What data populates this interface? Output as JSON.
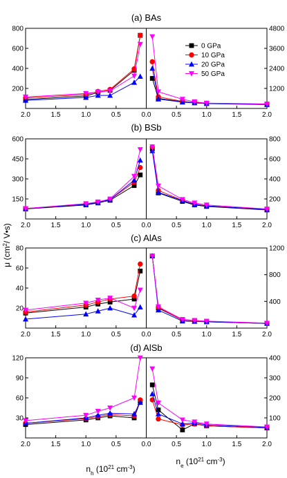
{
  "ylabel": "μ (cm²/ V•s)",
  "xlabel_left": "n_h (10^21 cm^-3)",
  "xlabel_right": "n_e (10^21 cm^-3)",
  "legend": {
    "placement": "top-right of panel (a)",
    "entries": [
      {
        "label": "0 GPa",
        "color": "#000000",
        "marker": "square"
      },
      {
        "label": "10 GPa",
        "color": "#ff0000",
        "marker": "circle"
      },
      {
        "label": "20 GPa",
        "color": "#0000ff",
        "marker": "triangle-up"
      },
      {
        "label": "50 GPa",
        "color": "#ff00ff",
        "marker": "triangle-down"
      }
    ]
  },
  "chart_data": [
    {
      "type": "line",
      "title": "(a) BAs",
      "x_left": [
        2.0,
        1.0,
        0.8,
        0.6,
        0.2,
        0.1
      ],
      "x_right": [
        0.1,
        0.2,
        0.6,
        0.8,
        1.0,
        2.0
      ],
      "xlim_left": [
        2.0,
        0.0
      ],
      "xlim_right": [
        0.0,
        2.0
      ],
      "xticks": [
        "2.0",
        "1.5",
        "1.0",
        "0.5",
        "0.0"
      ],
      "xticks_right": [
        "0.5",
        "1.0",
        "1.5",
        "2.0"
      ],
      "ylim_left": [
        0,
        800
      ],
      "yticks_left": [
        "200",
        "400",
        "600",
        "800"
      ],
      "ylim_right": [
        0,
        4800
      ],
      "yticks_right": [
        "1200",
        "2400",
        "3600",
        "4800"
      ],
      "series": [
        {
          "name": "0 GPa",
          "left": [
            90,
            125,
            160,
            180,
            380,
            730
          ],
          "right": [
            1800,
            600,
            400,
            350,
            300,
            250
          ]
        },
        {
          "name": "10 GPa",
          "left": [
            105,
            140,
            170,
            190,
            395,
            730
          ],
          "right": [
            2800,
            700,
            420,
            360,
            310,
            260
          ]
        },
        {
          "name": "20 GPa",
          "left": [
            80,
            110,
            130,
            130,
            260,
            320
          ],
          "right": [
            2400,
            560,
            380,
            330,
            290,
            230
          ]
        },
        {
          "name": "50 GPa",
          "left": [
            115,
            150,
            165,
            175,
            325,
            640
          ],
          "right": [
            4300,
            1000,
            550,
            400,
            320,
            270
          ]
        }
      ]
    },
    {
      "type": "line",
      "title": "(b) BSb",
      "x_left": [
        2.0,
        1.0,
        0.8,
        0.6,
        0.2,
        0.1
      ],
      "x_right": [
        0.1,
        0.2,
        0.6,
        0.8,
        1.0,
        2.0
      ],
      "xlim_left": [
        2.0,
        0.0
      ],
      "xlim_right": [
        0.0,
        2.0
      ],
      "xticks": [
        "2.0",
        "1.5",
        "1.0",
        "0.5",
        "0.0"
      ],
      "xticks_right": [
        "0.5",
        "1.0",
        "1.5",
        "2.0"
      ],
      "ylim_left": [
        0,
        600
      ],
      "yticks_left": [
        "150",
        "300",
        "450",
        "600"
      ],
      "ylim_right": [
        0,
        800
      ],
      "yticks_right": [
        "200",
        "400",
        "600",
        "800"
      ],
      "series": [
        {
          "name": "0 GPa",
          "left": [
            75,
            105,
            120,
            140,
            250,
            330
          ],
          "right": [
            700,
            260,
            175,
            140,
            125,
            90
          ]
        },
        {
          "name": "10 GPa",
          "left": [
            78,
            112,
            125,
            145,
            275,
            385
          ],
          "right": [
            720,
            285,
            185,
            150,
            130,
            95
          ]
        },
        {
          "name": "20 GPa",
          "left": [
            78,
            110,
            123,
            145,
            290,
            440
          ],
          "right": [
            680,
            265,
            185,
            145,
            130,
            95
          ]
        },
        {
          "name": "50 GPa",
          "left": [
            78,
            115,
            128,
            150,
            320,
            520
          ],
          "right": [
            720,
            330,
            195,
            160,
            140,
            100
          ]
        }
      ]
    },
    {
      "type": "line",
      "title": "(c) AlAs",
      "x_left": [
        2.0,
        1.0,
        0.8,
        0.6,
        0.2,
        0.1
      ],
      "x_right": [
        0.1,
        0.2,
        0.6,
        0.8,
        1.0,
        2.0
      ],
      "xlim_left": [
        2.0,
        0.0
      ],
      "xlim_right": [
        0.0,
        2.0
      ],
      "xticks": [
        "2.0",
        "1.5",
        "1.0",
        "0.5",
        "0.0"
      ],
      "xticks_right": [
        "0.5",
        "1.0",
        "1.5",
        "2.0"
      ],
      "ylim_left": [
        0,
        80
      ],
      "yticks_left": [
        "20",
        "40",
        "60",
        "80"
      ],
      "ylim_right": [
        0,
        1200
      ],
      "yticks_right": [
        "400",
        "800",
        "1200"
      ],
      "series": [
        {
          "name": "0 GPa",
          "left": [
            15,
            21,
            24,
            26,
            29,
            57
          ],
          "right": [
            1080,
            300,
            120,
            115,
            95,
            70
          ]
        },
        {
          "name": "10 GPa",
          "left": [
            16,
            23,
            26,
            29,
            32,
            64
          ],
          "right": [
            1080,
            310,
            120,
            110,
            100,
            70
          ]
        },
        {
          "name": "20 GPa",
          "left": [
            9,
            14,
            17,
            20,
            13,
            21
          ],
          "right": [
            1080,
            270,
            105,
            100,
            95,
            70
          ]
        },
        {
          "name": "50 GPa",
          "left": [
            18,
            25,
            28,
            30,
            20,
            38
          ],
          "right": [
            1080,
            320,
            130,
            115,
            105,
            75
          ]
        }
      ]
    },
    {
      "type": "line",
      "title": "(d) AlSb",
      "x_left": [
        2.0,
        1.0,
        0.8,
        0.6,
        0.2,
        0.1
      ],
      "x_right": [
        0.1,
        0.2,
        0.6,
        0.8,
        1.0,
        2.0
      ],
      "xlim_left": [
        2.0,
        0.0
      ],
      "xlim_right": [
        0.0,
        2.0
      ],
      "xticks": [
        "2.0",
        "1.5",
        "1.0",
        "0.5",
        "0.0"
      ],
      "xticks_right": [
        "0.5",
        "1.0",
        "1.5",
        "2.0"
      ],
      "ylim_left": [
        0,
        120
      ],
      "yticks_left": [
        "30",
        "60",
        "90",
        "120"
      ],
      "ylim_right": [
        0,
        400
      ],
      "yticks_right": [
        "100",
        "200",
        "300",
        "400"
      ],
      "series": [
        {
          "name": "0 GPa",
          "left": [
            20,
            27,
            30,
            33,
            30,
            55
          ],
          "right": [
            265,
            140,
            40,
            70,
            60,
            50
          ]
        },
        {
          "name": "10 GPa",
          "left": [
            22,
            29,
            32,
            35,
            33,
            57
          ],
          "right": [
            190,
            95,
            65,
            70,
            60,
            50
          ]
        },
        {
          "name": "20 GPa",
          "left": [
            22,
            30,
            34,
            37,
            36,
            53
          ],
          "right": [
            220,
            120,
            70,
            75,
            65,
            52
          ]
        },
        {
          "name": "50 GPa",
          "left": [
            26,
            34,
            40,
            45,
            60,
            120
          ],
          "right": [
            345,
            175,
            90,
            80,
            70,
            55
          ]
        }
      ]
    }
  ]
}
